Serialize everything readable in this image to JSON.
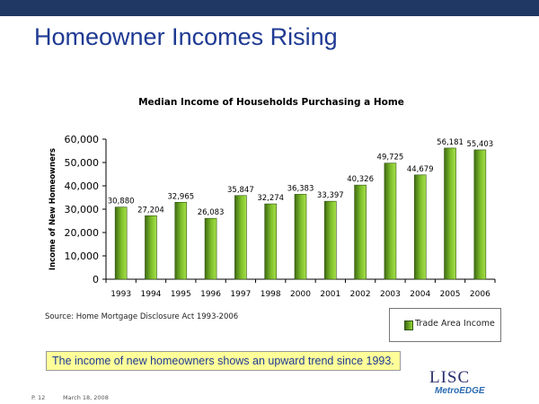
{
  "slide_title": "Homeowner Incomes Rising",
  "chart_data": {
    "type": "bar",
    "title": "Median Income of Households Purchasing a Home",
    "xlabel": "",
    "ylabel": "Income of New Homeowners",
    "ylim": [
      0,
      60000
    ],
    "yticks": [
      0,
      10000,
      20000,
      30000,
      40000,
      50000,
      60000
    ],
    "ytick_labels": [
      "0",
      "10,000",
      "20,000",
      "30,000",
      "40,000",
      "50,000",
      "60,000"
    ],
    "grid": false,
    "legend_position": "bottom-right",
    "categories": [
      "1993",
      "1994",
      "1995",
      "1996",
      "1997",
      "1998",
      "2000",
      "2001",
      "2002",
      "2003",
      "2004",
      "2005",
      "2006"
    ],
    "series": [
      {
        "name": "Trade Area Income",
        "values": [
          30880,
          27204,
          32965,
          26083,
          35847,
          32274,
          36383,
          33397,
          40326,
          49725,
          44679,
          56181,
          55403
        ],
        "labels": [
          "30,880",
          "27,204",
          "32,965",
          "26,083",
          "35,847",
          "32,274",
          "36,383",
          "33,397",
          "40,326",
          "49,725",
          "44,679",
          "56,181",
          "55,403"
        ],
        "color": "#6aa520"
      }
    ]
  },
  "source_text": "Source: Home Mortgage Disclosure Act 1993-2006",
  "callout_text": "The income of new homeowners shows an upward trend since 1993.",
  "footer": {
    "page": "P. 12",
    "date": "March 18, 2008"
  },
  "logo": {
    "name": "LISC",
    "sub": "MetroEDGE"
  }
}
